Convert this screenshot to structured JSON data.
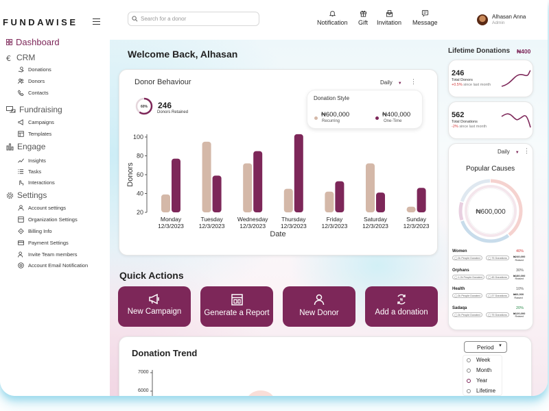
{
  "app": {
    "logo": "FUNDAWISE"
  },
  "header": {
    "search_placeholder": "Search for a donor",
    "nav": [
      {
        "label": "Notification",
        "icon": "bell-icon"
      },
      {
        "label": "Gift",
        "icon": "gift-icon"
      },
      {
        "label": "Invitation",
        "icon": "invitation-icon"
      },
      {
        "label": "Message",
        "icon": "message-icon"
      }
    ],
    "user": {
      "name": "Alhasan Anna",
      "role": "Admin"
    }
  },
  "sidebar": {
    "dashboard": "Dashboard",
    "crm": {
      "label": "CRM",
      "items": [
        "Donations",
        "Donors",
        "Contacts"
      ]
    },
    "fundraising": {
      "label": "Fundraising",
      "items": [
        "Campaigns",
        "Templates"
      ]
    },
    "engage": {
      "label": "Engage",
      "items": [
        "Insights",
        "Tasks",
        "Interactions"
      ]
    },
    "settings": {
      "label": "Settings",
      "items": [
        "Account settings",
        "Organization Settings",
        "Billing Info",
        "Payment Settings",
        "Invite Team members",
        "Account Email Notification"
      ]
    }
  },
  "welcome": "Welcome Back, Alhasan",
  "donor_behaviour": {
    "title": "Donor Behaviour",
    "range": "Daily",
    "retained_pct": "60%",
    "retained_fraction": 0.6,
    "retained_count": "246",
    "retained_label": "Donors Retained",
    "style_title": "Donation Style",
    "recurring_amount": "₦600,000",
    "recurring_label": "Recurring",
    "onetime_amount": "₦400,000",
    "onetime_label": "One-Time"
  },
  "chart_data": {
    "type": "bar",
    "xlabel": "Date",
    "ylabel": "Donors",
    "ylim": [
      20,
      100
    ],
    "yticks": [
      20,
      40,
      60,
      80,
      100
    ],
    "categories": [
      {
        "day": "Monday",
        "date": "12/3/2023"
      },
      {
        "day": "Tuesday",
        "date": "12/3/2023"
      },
      {
        "day": "Wednesday",
        "date": "12/3/2023"
      },
      {
        "day": "Thursday",
        "date": "12/3/2023"
      },
      {
        "day": "Friday",
        "date": "12/3/2023"
      },
      {
        "day": "Saturday",
        "date": "12/3/2023"
      },
      {
        "day": "Sunday",
        "date": "12/3/2023"
      }
    ],
    "series": [
      {
        "color": "#d4b8a8",
        "values": [
          39,
          95,
          72,
          45,
          42,
          72,
          26
        ]
      },
      {
        "color": "#7d2759",
        "values": [
          77,
          59,
          85,
          103,
          53,
          41,
          46
        ]
      }
    ]
  },
  "quick_actions": {
    "title": "Quick Actions",
    "items": [
      {
        "label": "New Campaign",
        "icon": "megaphone-icon"
      },
      {
        "label": "Generate a Report",
        "icon": "report-icon"
      },
      {
        "label": "New Donor",
        "icon": "person-icon"
      },
      {
        "label": "Add a donation",
        "icon": "donation-icon"
      }
    ]
  },
  "trend": {
    "title": "Donation Trend",
    "yticks": [
      "7000",
      "6000"
    ],
    "period_label": "Period",
    "period_options": [
      "Week",
      "Month",
      "Year",
      "Lifetime"
    ],
    "selected": "Year"
  },
  "lifetime": {
    "title": "Lifetime Donations",
    "value": "₦400",
    "cards": [
      {
        "num": "246",
        "label": "Total Donors",
        "change": "+0.5%",
        "change_text": "since last month",
        "change_color": "#d23b3b"
      },
      {
        "num": "562",
        "label": "Total Donations",
        "change": "-2%",
        "change_text": "since last month",
        "change_color": "#d23b3b"
      }
    ]
  },
  "popular": {
    "range": "Daily",
    "title": "Popular Causes",
    "total": "₦600,000",
    "causes": [
      {
        "name": "Women",
        "pct": "40%",
        "people": "2k People Donated",
        "donations": "75 Donations",
        "amount": "₦240,000",
        "amount_label": "Raised",
        "pct_color": "#d23b3b"
      },
      {
        "name": "Orphans",
        "pct": "30%",
        "people": "1.2k People Donated",
        "donations": "45 Donations",
        "amount": "₦180,000",
        "amount_label": "Raised",
        "pct_color": "#555555"
      },
      {
        "name": "Health",
        "pct": "10%",
        "people": "2k People Donated",
        "donations": "27 Donations",
        "amount": "₦60,000",
        "amount_label": "Raised",
        "pct_color": "#555555"
      },
      {
        "name": "Sadaqa",
        "pct": "20%",
        "people": "2k People Donated",
        "donations": "75 Donations",
        "amount": "₦120,000",
        "amount_label": "Raised",
        "pct_color": "#2a8a4a"
      }
    ],
    "ring": [
      {
        "value": 40,
        "color": "#f5d2cf"
      },
      {
        "value": 30,
        "color": "#c8dceb"
      },
      {
        "value": 10,
        "color": "#e8cfe0"
      },
      {
        "value": 20,
        "color": "#dfe8f0"
      }
    ]
  }
}
